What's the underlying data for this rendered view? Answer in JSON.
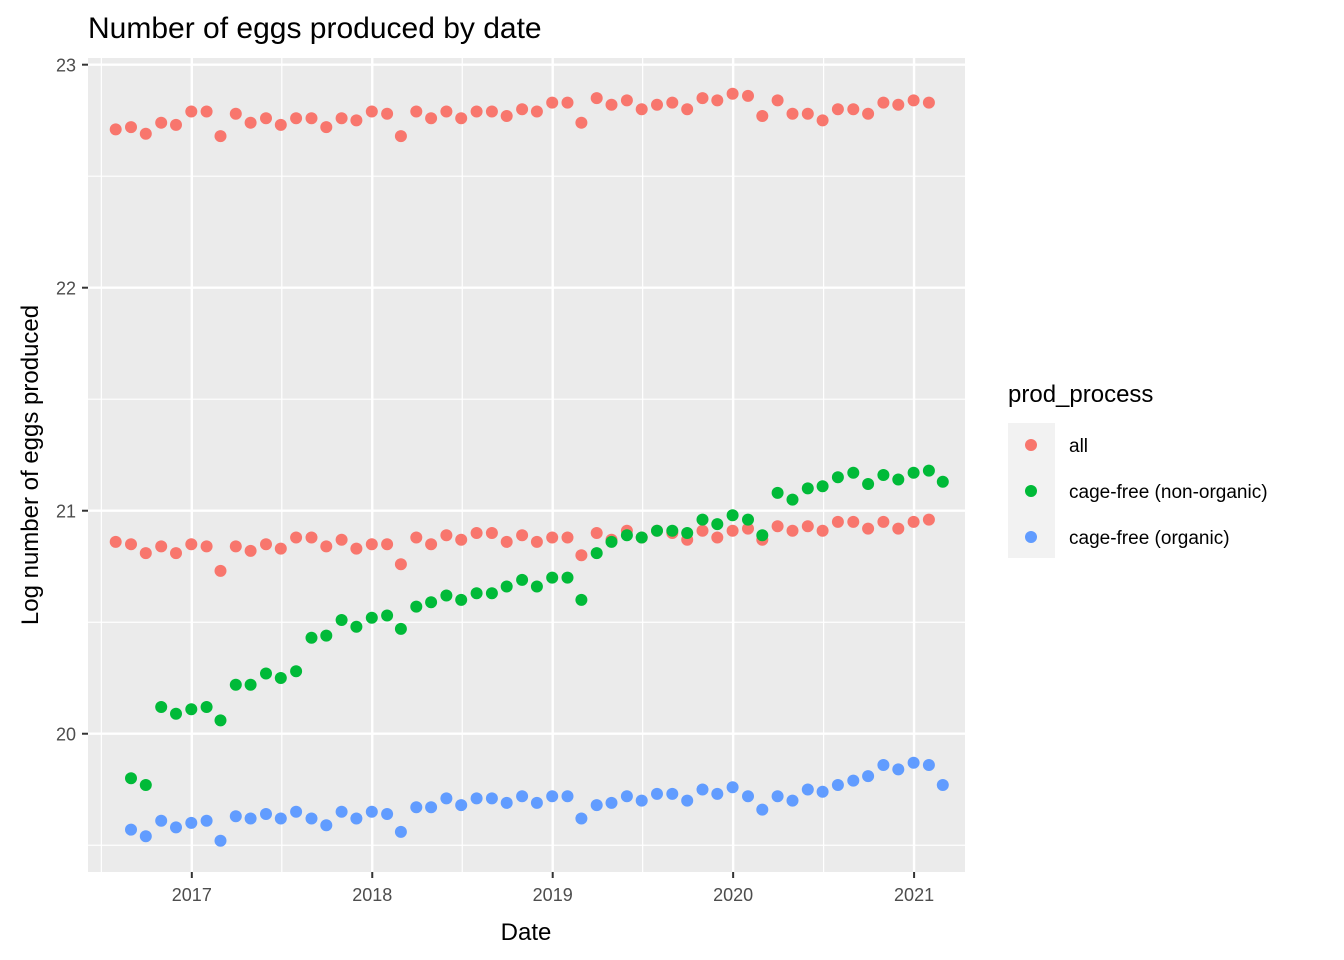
{
  "chart_data": {
    "type": "scatter",
    "title": "Number of eggs produced by date",
    "xlabel": "Date",
    "ylabel": "Log number of eggs produced",
    "x_ticks": [
      "2017",
      "2018",
      "2019",
      "2020",
      "2021"
    ],
    "y_ticks": [
      "20",
      "21",
      "22",
      "23"
    ],
    "xlim": [
      "2016-06-05",
      "2021-04-14"
    ],
    "ylim": [
      19.38,
      23.03
    ],
    "grid": true,
    "legend": {
      "title": "prod_process",
      "position": "right"
    },
    "series": [
      {
        "name": "all",
        "color": "#F8766D",
        "points": [
          [
            "2016-07-31",
            22.71
          ],
          [
            "2016-08-31",
            22.72
          ],
          [
            "2016-09-30",
            22.69
          ],
          [
            "2016-10-31",
            22.74
          ],
          [
            "2016-11-30",
            22.73
          ],
          [
            "2016-12-31",
            22.79
          ],
          [
            "2017-01-31",
            22.79
          ],
          [
            "2017-02-28",
            22.68
          ],
          [
            "2017-03-31",
            22.78
          ],
          [
            "2017-04-30",
            22.74
          ],
          [
            "2017-05-31",
            22.76
          ],
          [
            "2017-06-30",
            22.73
          ],
          [
            "2017-07-31",
            22.76
          ],
          [
            "2017-08-31",
            22.76
          ],
          [
            "2017-09-30",
            22.72
          ],
          [
            "2017-10-31",
            22.76
          ],
          [
            "2017-11-30",
            22.75
          ],
          [
            "2017-12-31",
            22.79
          ],
          [
            "2018-01-31",
            22.78
          ],
          [
            "2018-02-28",
            22.68
          ],
          [
            "2018-03-31",
            22.79
          ],
          [
            "2018-04-30",
            22.76
          ],
          [
            "2018-05-31",
            22.79
          ],
          [
            "2018-06-30",
            22.76
          ],
          [
            "2018-07-31",
            22.79
          ],
          [
            "2018-08-31",
            22.79
          ],
          [
            "2018-09-30",
            22.77
          ],
          [
            "2018-10-31",
            22.8
          ],
          [
            "2018-11-30",
            22.79
          ],
          [
            "2018-12-31",
            22.83
          ],
          [
            "2019-01-31",
            22.83
          ],
          [
            "2019-02-28",
            22.74
          ],
          [
            "2019-03-31",
            22.85
          ],
          [
            "2019-04-30",
            22.82
          ],
          [
            "2019-05-31",
            22.84
          ],
          [
            "2019-06-30",
            22.8
          ],
          [
            "2019-07-31",
            22.82
          ],
          [
            "2019-08-31",
            22.83
          ],
          [
            "2019-09-30",
            22.8
          ],
          [
            "2019-10-31",
            22.85
          ],
          [
            "2019-11-30",
            22.84
          ],
          [
            "2019-12-31",
            22.87
          ],
          [
            "2020-01-31",
            22.86
          ],
          [
            "2020-02-29",
            22.77
          ],
          [
            "2020-03-31",
            22.84
          ],
          [
            "2020-04-30",
            22.78
          ],
          [
            "2020-05-31",
            22.78
          ],
          [
            "2020-06-30",
            22.75
          ],
          [
            "2020-07-31",
            22.8
          ],
          [
            "2020-08-31",
            22.8
          ],
          [
            "2020-09-30",
            22.78
          ],
          [
            "2020-10-31",
            22.83
          ],
          [
            "2020-11-30",
            22.82
          ],
          [
            "2020-12-31",
            22.84
          ],
          [
            "2021-01-31",
            22.83
          ],
          [
            "2016-07-31",
            20.86
          ],
          [
            "2016-08-31",
            20.85
          ],
          [
            "2016-09-30",
            20.81
          ],
          [
            "2016-10-31",
            20.84
          ],
          [
            "2016-11-30",
            20.81
          ],
          [
            "2016-12-31",
            20.85
          ],
          [
            "2017-01-31",
            20.84
          ],
          [
            "2017-02-28",
            20.73
          ],
          [
            "2017-03-31",
            20.84
          ],
          [
            "2017-04-30",
            20.82
          ],
          [
            "2017-05-31",
            20.85
          ],
          [
            "2017-06-30",
            20.83
          ],
          [
            "2017-07-31",
            20.88
          ],
          [
            "2017-08-31",
            20.88
          ],
          [
            "2017-09-30",
            20.84
          ],
          [
            "2017-10-31",
            20.87
          ],
          [
            "2017-11-30",
            20.83
          ],
          [
            "2017-12-31",
            20.85
          ],
          [
            "2018-01-31",
            20.85
          ],
          [
            "2018-02-28",
            20.76
          ],
          [
            "2018-03-31",
            20.88
          ],
          [
            "2018-04-30",
            20.85
          ],
          [
            "2018-05-31",
            20.89
          ],
          [
            "2018-06-30",
            20.87
          ],
          [
            "2018-07-31",
            20.9
          ],
          [
            "2018-08-31",
            20.9
          ],
          [
            "2018-09-30",
            20.86
          ],
          [
            "2018-10-31",
            20.89
          ],
          [
            "2018-11-30",
            20.86
          ],
          [
            "2018-12-31",
            20.88
          ],
          [
            "2019-01-31",
            20.88
          ],
          [
            "2019-02-28",
            20.8
          ],
          [
            "2019-03-31",
            20.9
          ],
          [
            "2019-04-30",
            20.87
          ],
          [
            "2019-05-31",
            20.91
          ],
          [
            "2019-06-30",
            20.88
          ],
          [
            "2019-07-31",
            20.91
          ],
          [
            "2019-08-31",
            20.9
          ],
          [
            "2019-09-30",
            20.87
          ],
          [
            "2019-10-31",
            20.91
          ],
          [
            "2019-11-30",
            20.88
          ],
          [
            "2019-12-31",
            20.91
          ],
          [
            "2020-01-31",
            20.92
          ],
          [
            "2020-02-29",
            20.87
          ],
          [
            "2020-03-31",
            20.93
          ],
          [
            "2020-04-30",
            20.91
          ],
          [
            "2020-05-31",
            20.93
          ],
          [
            "2020-06-30",
            20.91
          ],
          [
            "2020-07-31",
            20.95
          ],
          [
            "2020-08-31",
            20.95
          ],
          [
            "2020-09-30",
            20.92
          ],
          [
            "2020-10-31",
            20.95
          ],
          [
            "2020-11-30",
            20.92
          ],
          [
            "2020-12-31",
            20.95
          ],
          [
            "2021-01-31",
            20.96
          ]
        ]
      },
      {
        "name": "cage-free (non-organic)",
        "color": "#00BA38",
        "points": [
          [
            "2016-08-31",
            19.8
          ],
          [
            "2016-09-30",
            19.77
          ],
          [
            "2016-10-31",
            20.12
          ],
          [
            "2016-11-30",
            20.09
          ],
          [
            "2016-12-31",
            20.11
          ],
          [
            "2017-01-31",
            20.12
          ],
          [
            "2017-02-28",
            20.06
          ],
          [
            "2017-03-31",
            20.22
          ],
          [
            "2017-04-30",
            20.22
          ],
          [
            "2017-05-31",
            20.27
          ],
          [
            "2017-06-30",
            20.25
          ],
          [
            "2017-07-31",
            20.28
          ],
          [
            "2017-08-31",
            20.43
          ],
          [
            "2017-09-30",
            20.44
          ],
          [
            "2017-10-31",
            20.51
          ],
          [
            "2017-11-30",
            20.48
          ],
          [
            "2017-12-31",
            20.52
          ],
          [
            "2018-01-31",
            20.53
          ],
          [
            "2018-02-28",
            20.47
          ],
          [
            "2018-03-31",
            20.57
          ],
          [
            "2018-04-30",
            20.59
          ],
          [
            "2018-05-31",
            20.62
          ],
          [
            "2018-06-30",
            20.6
          ],
          [
            "2018-07-31",
            20.63
          ],
          [
            "2018-08-31",
            20.63
          ],
          [
            "2018-09-30",
            20.66
          ],
          [
            "2018-10-31",
            20.69
          ],
          [
            "2018-11-30",
            20.66
          ],
          [
            "2018-12-31",
            20.7
          ],
          [
            "2019-01-31",
            20.7
          ],
          [
            "2019-02-28",
            20.6
          ],
          [
            "2019-03-31",
            20.81
          ],
          [
            "2019-04-30",
            20.86
          ],
          [
            "2019-05-31",
            20.89
          ],
          [
            "2019-06-30",
            20.88
          ],
          [
            "2019-07-31",
            20.91
          ],
          [
            "2019-08-31",
            20.91
          ],
          [
            "2019-09-30",
            20.9
          ],
          [
            "2019-10-31",
            20.96
          ],
          [
            "2019-11-30",
            20.94
          ],
          [
            "2019-12-31",
            20.98
          ],
          [
            "2020-01-31",
            20.96
          ],
          [
            "2020-02-29",
            20.89
          ],
          [
            "2020-03-31",
            21.08
          ],
          [
            "2020-04-30",
            21.05
          ],
          [
            "2020-05-31",
            21.1
          ],
          [
            "2020-06-30",
            21.11
          ],
          [
            "2020-07-31",
            21.15
          ],
          [
            "2020-08-31",
            21.17
          ],
          [
            "2020-09-30",
            21.12
          ],
          [
            "2020-10-31",
            21.16
          ],
          [
            "2020-11-30",
            21.14
          ],
          [
            "2020-12-31",
            21.17
          ],
          [
            "2021-01-31",
            21.18
          ],
          [
            "2021-02-28",
            21.13
          ]
        ]
      },
      {
        "name": "cage-free (organic)",
        "color": "#619CFF",
        "points": [
          [
            "2016-08-31",
            19.57
          ],
          [
            "2016-09-30",
            19.54
          ],
          [
            "2016-10-31",
            19.61
          ],
          [
            "2016-11-30",
            19.58
          ],
          [
            "2016-12-31",
            19.6
          ],
          [
            "2017-01-31",
            19.61
          ],
          [
            "2017-02-28",
            19.52
          ],
          [
            "2017-03-31",
            19.63
          ],
          [
            "2017-04-30",
            19.62
          ],
          [
            "2017-05-31",
            19.64
          ],
          [
            "2017-06-30",
            19.62
          ],
          [
            "2017-07-31",
            19.65
          ],
          [
            "2017-08-31",
            19.62
          ],
          [
            "2017-09-30",
            19.59
          ],
          [
            "2017-10-31",
            19.65
          ],
          [
            "2017-11-30",
            19.62
          ],
          [
            "2017-12-31",
            19.65
          ],
          [
            "2018-01-31",
            19.64
          ],
          [
            "2018-02-28",
            19.56
          ],
          [
            "2018-03-31",
            19.67
          ],
          [
            "2018-04-30",
            19.67
          ],
          [
            "2018-05-31",
            19.71
          ],
          [
            "2018-06-30",
            19.68
          ],
          [
            "2018-07-31",
            19.71
          ],
          [
            "2018-08-31",
            19.71
          ],
          [
            "2018-09-30",
            19.69
          ],
          [
            "2018-10-31",
            19.72
          ],
          [
            "2018-11-30",
            19.69
          ],
          [
            "2018-12-31",
            19.72
          ],
          [
            "2019-01-31",
            19.72
          ],
          [
            "2019-02-28",
            19.62
          ],
          [
            "2019-03-31",
            19.68
          ],
          [
            "2019-04-30",
            19.69
          ],
          [
            "2019-05-31",
            19.72
          ],
          [
            "2019-06-30",
            19.7
          ],
          [
            "2019-07-31",
            19.73
          ],
          [
            "2019-08-31",
            19.73
          ],
          [
            "2019-09-30",
            19.7
          ],
          [
            "2019-10-31",
            19.75
          ],
          [
            "2019-11-30",
            19.73
          ],
          [
            "2019-12-31",
            19.76
          ],
          [
            "2020-01-31",
            19.72
          ],
          [
            "2020-02-29",
            19.66
          ],
          [
            "2020-03-31",
            19.72
          ],
          [
            "2020-04-30",
            19.7
          ],
          [
            "2020-05-31",
            19.75
          ],
          [
            "2020-06-30",
            19.74
          ],
          [
            "2020-07-31",
            19.77
          ],
          [
            "2020-08-31",
            19.79
          ],
          [
            "2020-09-30",
            19.81
          ],
          [
            "2020-10-31",
            19.86
          ],
          [
            "2020-11-30",
            19.84
          ],
          [
            "2020-12-31",
            19.87
          ],
          [
            "2021-01-31",
            19.86
          ],
          [
            "2021-02-28",
            19.77
          ]
        ]
      }
    ]
  }
}
